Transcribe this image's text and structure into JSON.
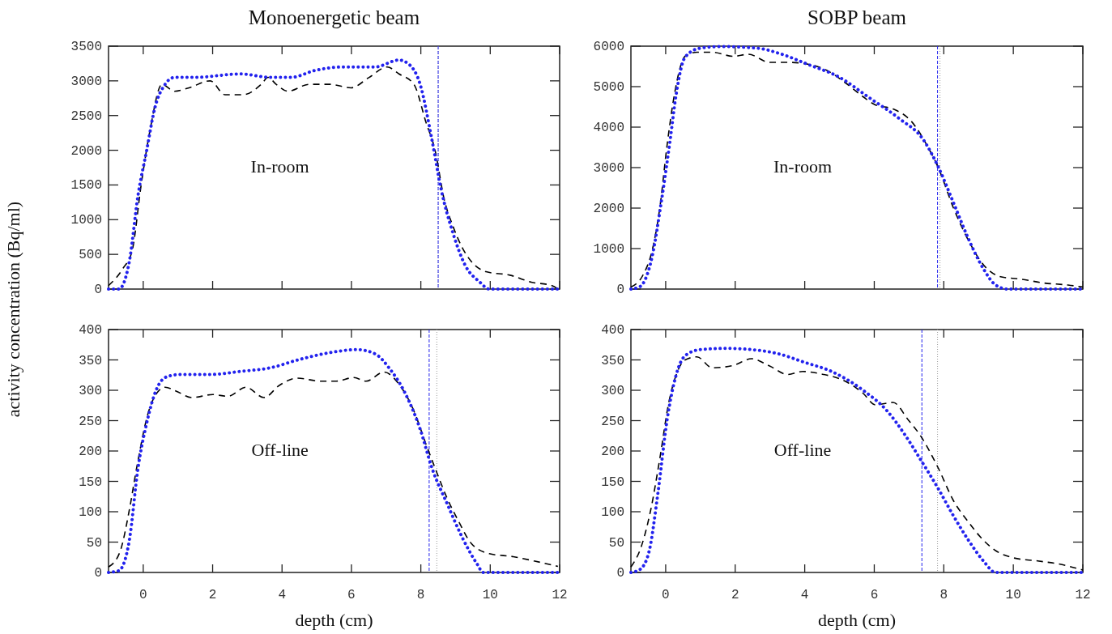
{
  "chart_data": [
    {
      "type": "line",
      "title": "Monoenergetic beam",
      "ylabel": "activity concentration (Bq/ml)",
      "annotations": [
        "In-room"
      ],
      "xlim": [
        -1,
        12
      ],
      "xticks": [
        0,
        2,
        4,
        6,
        8,
        10,
        12
      ],
      "ylim": [
        0,
        3500
      ],
      "yticks": [
        0,
        500,
        1000,
        1500,
        2000,
        2500,
        3000,
        3500
      ],
      "tick_labels": "y",
      "grid": false,
      "series": [
        {
          "color": "#000000",
          "line_style": "dashed",
          "x": [
            -1,
            -0.58,
            -0.32,
            -0.06,
            0.2,
            0.54,
            0.9,
            1.32,
            1.93,
            2.36,
            2.88,
            3.4,
            3.6,
            3.83,
            4.17,
            4.78,
            5.38,
            5.99,
            6.51,
            7.03,
            7.37,
            7.8,
            8.15,
            8.41,
            8.67,
            8.93,
            9.19,
            9.45,
            9.88,
            10.57,
            11.18,
            11.78,
            11.95
          ],
          "values": [
            50,
            300,
            550,
            1500,
            2300,
            2950,
            2850,
            2900,
            3000,
            2800,
            2800,
            2950,
            3050,
            2950,
            2850,
            2950,
            2950,
            2900,
            3050,
            3200,
            3100,
            2950,
            2400,
            2000,
            1300,
            900,
            600,
            400,
            250,
            200,
            100,
            50,
            0
          ]
        },
        {
          "color": "#2222ee",
          "line_style": "dotted",
          "x": [
            -1,
            -0.7,
            -0.4,
            -0.15,
            0.1,
            0.33,
            0.63,
            0.9,
            1.5,
            2.8,
            3.66,
            4.26,
            4.95,
            5.73,
            6.68,
            7.37,
            7.63,
            7.98,
            8.32,
            8.58,
            8.93,
            9.27,
            9.7,
            9.97,
            11.95
          ],
          "values": [
            0,
            0,
            400,
            1350,
            2000,
            2600,
            2950,
            3050,
            3050,
            3100,
            3050,
            3050,
            3150,
            3200,
            3200,
            3300,
            3250,
            2950,
            2150,
            1450,
            800,
            350,
            100,
            0,
            0
          ]
        }
      ],
      "ref_lines": [
        {
          "axis": "x",
          "value": 8.5,
          "color": "#999999",
          "line_style": "dotted"
        },
        {
          "axis": "x",
          "value": 8.5,
          "color": "#2222ee",
          "line_style": "dashed"
        }
      ]
    },
    {
      "type": "line",
      "title": "SOBP beam",
      "annotations": [
        "In-room"
      ],
      "xlim": [
        -1,
        12
      ],
      "xticks": [
        0,
        2,
        4,
        6,
        8,
        10,
        12
      ],
      "ylim": [
        0,
        6000
      ],
      "yticks": [
        0,
        1000,
        2000,
        3000,
        4000,
        5000,
        6000
      ],
      "tick_labels": "y",
      "grid": false,
      "series": [
        {
          "color": "#000000",
          "line_style": "dashed",
          "x": [
            -1,
            -0.65,
            -0.39,
            -0.17,
            0.04,
            0.26,
            0.56,
            0.9,
            1.34,
            1.95,
            2.38,
            2.99,
            3.51,
            4.12,
            4.64,
            5.16,
            5.68,
            6.03,
            6.54,
            7.06,
            7.58,
            7.84,
            8.28,
            8.71,
            9.14,
            9.66,
            10.18,
            10.88,
            11.57,
            12
          ],
          "values": [
            50,
            350,
            950,
            2000,
            3550,
            4850,
            5750,
            5850,
            5850,
            5750,
            5800,
            5600,
            5600,
            5550,
            5400,
            5100,
            4750,
            4550,
            4450,
            4150,
            3450,
            3000,
            2000,
            1200,
            600,
            300,
            250,
            150,
            100,
            50
          ]
        },
        {
          "color": "#2222ee",
          "line_style": "dotted",
          "x": [
            -1,
            -0.74,
            -0.39,
            -0.13,
            0.13,
            0.3,
            0.56,
            0.99,
            1.6,
            2.64,
            3.34,
            4.12,
            4.98,
            5.85,
            6.72,
            7.41,
            7.84,
            8.28,
            8.71,
            9.14,
            9.49,
            9.84,
            12
          ],
          "values": [
            0,
            60,
            800,
            2130,
            3690,
            4800,
            5730,
            5950,
            5990,
            5950,
            5800,
            5540,
            5240,
            4730,
            4210,
            3690,
            3020,
            2130,
            1240,
            500,
            100,
            0,
            0
          ]
        }
      ],
      "ref_lines": [
        {
          "axis": "x",
          "value": 7.89,
          "color": "#999999",
          "line_style": "dotted"
        },
        {
          "axis": "x",
          "value": 7.82,
          "color": "#2222ee",
          "line_style": "dashed"
        }
      ]
    },
    {
      "type": "line",
      "xlabel": "depth (cm)",
      "annotations": [
        "Off-line"
      ],
      "xlim": [
        -1,
        12
      ],
      "xticks": [
        0,
        2,
        4,
        6,
        8,
        10,
        12
      ],
      "ylim": [
        0,
        400
      ],
      "yticks": [
        0,
        50,
        100,
        150,
        200,
        250,
        300,
        350,
        400
      ],
      "grid": false,
      "series": [
        {
          "color": "#000000",
          "line_style": "dashed",
          "x": [
            -1,
            -0.67,
            -0.4,
            -0.19,
            0.16,
            0.46,
            0.63,
            0.97,
            1.4,
            2.01,
            2.44,
            2.96,
            3.48,
            3.92,
            4.43,
            5.12,
            5.56,
            6.07,
            6.42,
            6.94,
            7.37,
            7.8,
            8.15,
            8.41,
            8.76,
            9.1,
            9.45,
            9.97,
            10.66,
            11.26,
            11.95
          ],
          "values": [
            9,
            34,
            103,
            172,
            266,
            300,
            305,
            298,
            288,
            293,
            290,
            305,
            288,
            308,
            320,
            315,
            315,
            321,
            315,
            330,
            310,
            266,
            211,
            172,
            122,
            83,
            48,
            31,
            26,
            19,
            10
          ]
        },
        {
          "color": "#2222ee",
          "line_style": "dotted",
          "x": [
            -1,
            -0.7,
            -0.4,
            -0.15,
            0.1,
            0.37,
            0.67,
            1.06,
            1.93,
            2.79,
            3.66,
            4.52,
            5.38,
            6.16,
            6.68,
            7.11,
            7.55,
            7.98,
            8.32,
            8.76,
            9.19,
            9.62,
            9.8,
            11.95
          ],
          "values": [
            0,
            3,
            53,
            172,
            246,
            300,
            322,
            326,
            326,
            331,
            337,
            351,
            362,
            367,
            360,
            335,
            295,
            236,
            172,
            113,
            58,
            14,
            0,
            0
          ]
        }
      ],
      "ref_lines": [
        {
          "axis": "x",
          "value": 8.46,
          "color": "#999999",
          "line_style": "dotted"
        },
        {
          "axis": "x",
          "value": 8.24,
          "color": "#2222ee",
          "line_style": "dashed"
        }
      ]
    },
    {
      "type": "line",
      "xlabel": "depth (cm)",
      "annotations": [
        "Off-line"
      ],
      "xlim": [
        -1,
        12
      ],
      "xticks": [
        0,
        2,
        4,
        6,
        8,
        10,
        12
      ],
      "ylim": [
        0,
        400
      ],
      "yticks": [
        0,
        50,
        100,
        150,
        200,
        250,
        300,
        350,
        400
      ],
      "grid": false,
      "series": [
        {
          "color": "#000000",
          "line_style": "dashed",
          "x": [
            -1,
            -0.7,
            -0.43,
            -0.17,
            0.09,
            0.3,
            0.56,
            0.9,
            1.34,
            1.95,
            2.47,
            2.99,
            3.51,
            3.94,
            4.46,
            5.16,
            5.68,
            6.03,
            6.54,
            6.98,
            7.32,
            7.84,
            8.28,
            8.71,
            9.06,
            9.49,
            10.01,
            10.7,
            11.31,
            12
          ],
          "values": [
            9,
            43,
            103,
            187,
            280,
            325,
            350,
            355,
            337,
            341,
            352,
            340,
            326,
            331,
            327,
            315,
            295,
            276,
            280,
            251,
            226,
            172,
            118,
            83,
            58,
            36,
            24,
            19,
            14,
            4
          ]
        },
        {
          "color": "#2222ee",
          "line_style": "dotted",
          "x": [
            -1,
            -0.74,
            -0.48,
            -0.22,
            0.04,
            0.3,
            0.56,
            0.99,
            1.78,
            2.47,
            3.25,
            3.94,
            4.81,
            5.68,
            6.37,
            6.89,
            7.32,
            7.84,
            8.28,
            8.71,
            9.14,
            9.49,
            9.75,
            12
          ],
          "values": [
            0,
            5,
            34,
            132,
            251,
            325,
            357,
            367,
            369,
            367,
            360,
            347,
            330,
            300,
            266,
            226,
            187,
            138,
            93,
            53,
            19,
            0,
            0,
            0
          ]
        }
      ],
      "ref_lines": [
        {
          "axis": "x",
          "value": 7.82,
          "color": "#999999",
          "line_style": "dotted"
        },
        {
          "axis": "x",
          "value": 7.37,
          "color": "#2222ee",
          "line_style": "dashed"
        }
      ]
    }
  ]
}
